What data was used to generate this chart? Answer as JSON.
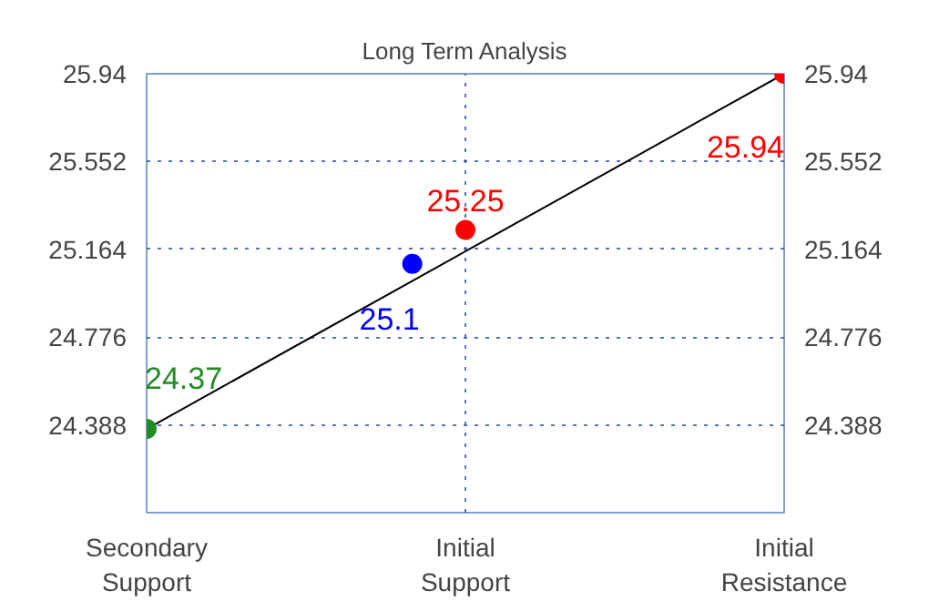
{
  "chart_data": {
    "type": "line",
    "title": "Long Term Analysis",
    "categories": [
      "Secondary\nSupport",
      null,
      null,
      null,
      null,
      null,
      "Initial\nSupport",
      null,
      null,
      null,
      null,
      null,
      "Initial\nResistance"
    ],
    "ylim": [
      24.0,
      25.94
    ],
    "yticks": [
      24.388,
      24.776,
      25.164,
      25.552,
      25.94
    ],
    "y2lim": [
      24.0,
      25.94
    ],
    "y2ticks": [
      24.388,
      24.776,
      25.164,
      25.552,
      25.94
    ],
    "grid": true,
    "series": [
      {
        "color": "#000000",
        "values": [
          24.37,
          null,
          null,
          null,
          null,
          null,
          null,
          null,
          null,
          null,
          null,
          null,
          25.94
        ]
      },
      {
        "type": "scatter",
        "values": [
          24.37,
          null,
          null,
          null,
          null,
          25.1,
          25.25,
          null,
          null,
          null,
          null,
          null,
          25.94
        ],
        "colors": [
          "#228b22",
          null,
          null,
          null,
          null,
          "#0000ff",
          "#ff0000",
          null,
          null,
          null,
          null,
          null,
          "#ff0000"
        ],
        "marker": "circle",
        "value_labels": [
          "24.37",
          null,
          null,
          null,
          null,
          "25.1",
          "25.25",
          null,
          null,
          null,
          null,
          null,
          "25.94"
        ]
      }
    ]
  }
}
